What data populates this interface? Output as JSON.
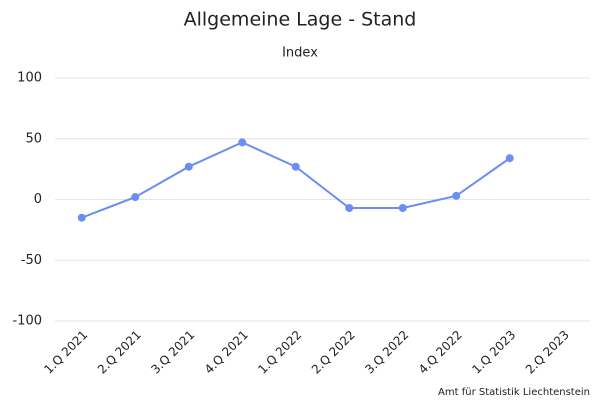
{
  "chart_data": {
    "type": "line",
    "title": "Allgemeine Lage - Stand",
    "subtitle": "Index",
    "categories": [
      "1.Q 2021",
      "2.Q 2021",
      "3.Q 2021",
      "4.Q 2021",
      "1.Q 2022",
      "2.Q 2022",
      "3.Q 2022",
      "4.Q 2022",
      "1.Q 2023",
      "2.Q 2023"
    ],
    "series": [
      {
        "name": "Index",
        "color": "#6b8ef5",
        "values": [
          -15,
          2,
          27,
          47,
          27,
          -7,
          -7,
          3,
          34,
          null
        ]
      }
    ],
    "ylim": [
      -100,
      100
    ],
    "yticks": [
      -100,
      -50,
      0,
      50,
      100
    ],
    "grid": true,
    "credit": "Amt für Statistik Liechtenstein"
  }
}
